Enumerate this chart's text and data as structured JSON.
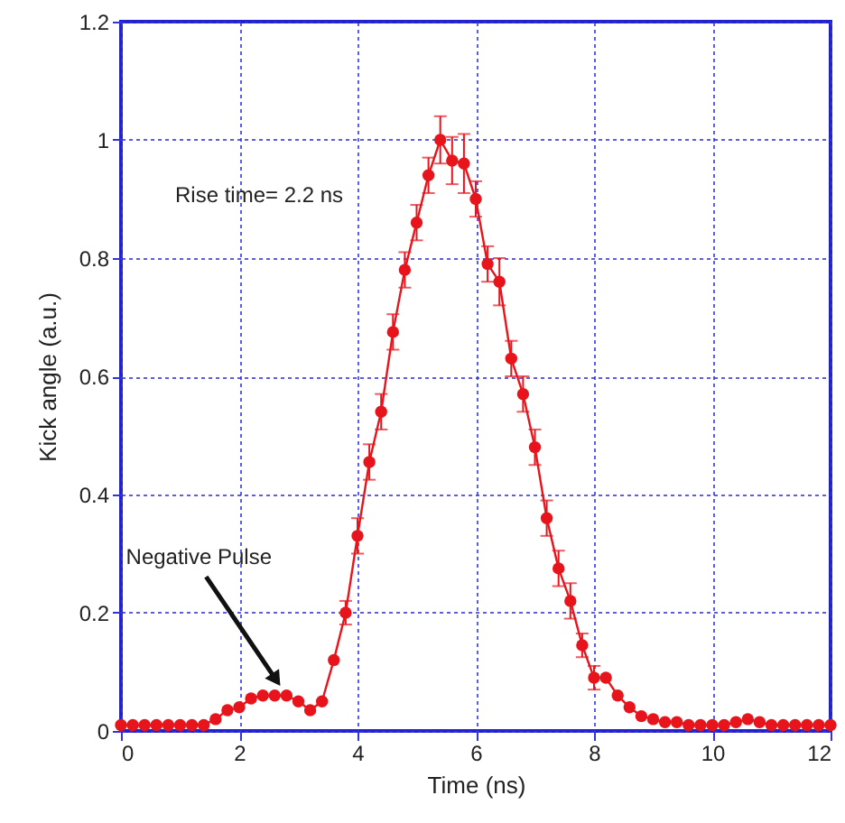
{
  "chart_data": {
    "type": "line",
    "xlabel": "Time (ns)",
    "ylabel": "Kick angle (a.u.)",
    "x": [
      0,
      0.2,
      0.4,
      0.6,
      0.8,
      1.0,
      1.2,
      1.4,
      1.6,
      1.8,
      2.0,
      2.2,
      2.4,
      2.6,
      2.8,
      3.0,
      3.2,
      3.4,
      3.6,
      3.8,
      4.0,
      4.2,
      4.4,
      4.6,
      4.8,
      5.0,
      5.2,
      5.4,
      5.6,
      5.8,
      6.0,
      6.2,
      6.4,
      6.6,
      6.8,
      7.0,
      7.2,
      7.4,
      7.6,
      7.8,
      8.0,
      8.2,
      8.4,
      8.6,
      8.8,
      9.0,
      9.2,
      9.4,
      9.6,
      9.8,
      10.0,
      10.2,
      10.4,
      10.6,
      10.8,
      11.0,
      11.2,
      11.4,
      11.6,
      11.8,
      12.0
    ],
    "series": [
      {
        "color": "#e8141c",
        "values": [
          0.01,
          0.01,
          0.01,
          0.01,
          0.01,
          0.01,
          0.01,
          0.01,
          0.02,
          0.035,
          0.04,
          0.055,
          0.06,
          0.06,
          0.06,
          0.05,
          0.035,
          0.05,
          0.12,
          0.2,
          0.33,
          0.455,
          0.54,
          0.675,
          0.78,
          0.86,
          0.94,
          1.0,
          0.965,
          0.96,
          0.9,
          0.79,
          0.76,
          0.63,
          0.57,
          0.48,
          0.36,
          0.275,
          0.22,
          0.145,
          0.09,
          0.09,
          0.06,
          0.04,
          0.025,
          0.02,
          0.015,
          0.015,
          0.01,
          0.01,
          0.01,
          0.01,
          0.015,
          0.02,
          0.015,
          0.01,
          0.01,
          0.01,
          0.01,
          0.01,
          0.01
        ],
        "errors": [
          null,
          null,
          null,
          null,
          null,
          null,
          null,
          null,
          null,
          null,
          null,
          null,
          null,
          null,
          null,
          null,
          null,
          null,
          null,
          0.02,
          0.03,
          0.03,
          0.03,
          0.03,
          0.03,
          0.03,
          0.03,
          0.04,
          0.04,
          0.05,
          0.03,
          0.03,
          0.04,
          0.03,
          0.03,
          0.03,
          0.03,
          0.03,
          0.03,
          0.02,
          0.02,
          null,
          null,
          null,
          null,
          null,
          null,
          null,
          null,
          null,
          null,
          null,
          null,
          null,
          null,
          null,
          null,
          null,
          null,
          null,
          null
        ]
      }
    ],
    "xlim": [
      0,
      12
    ],
    "xticks": [
      0,
      2,
      4,
      6,
      8,
      10,
      12
    ],
    "ylim": [
      0,
      1.2
    ],
    "yticks": [
      0,
      0.2,
      0.4,
      0.6,
      0.8,
      1,
      1.2
    ],
    "grid": true,
    "marker": "circle",
    "line_style": "solid",
    "annotations": [
      "Rise time= 2.2 ns",
      {
        "text": "Negative Pulse",
        "x": 2.6,
        "y": 0.09
      }
    ]
  }
}
